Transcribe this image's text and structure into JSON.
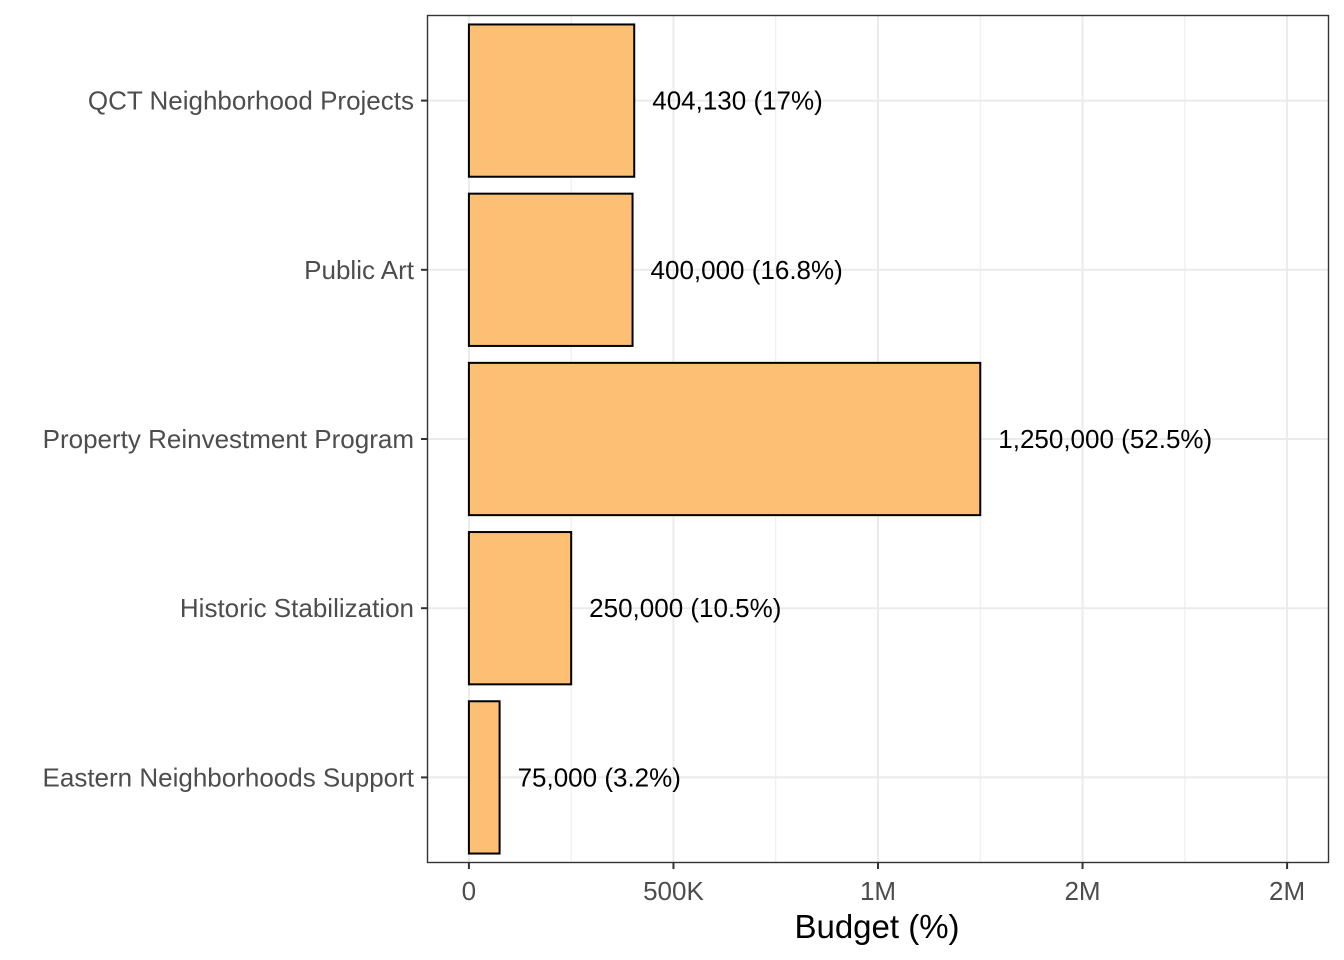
{
  "chart_data": {
    "type": "bar",
    "orientation": "horizontal",
    "title": "",
    "xlabel": "Budget (%)",
    "ylabel": "",
    "categories": [
      "QCT Neighborhood Projects",
      "Public Art",
      "Property Reinvestment Program",
      "Historic Stabilization",
      "Eastern Neighborhoods Support"
    ],
    "values": [
      404130,
      400000,
      1250000,
      250000,
      75000
    ],
    "data_labels": [
      "404,130 (17%)",
      "400,000 (16.8%)",
      "1,250,000 (52.5%)",
      "250,000 (10.5%)",
      "75,000 (3.2%)"
    ],
    "xlim": [
      -100000,
      2100000
    ],
    "x_ticks": [
      0,
      500000,
      1000000,
      1500000,
      2000000
    ],
    "x_tick_labels": [
      "0",
      "500K",
      "1M",
      "2M",
      "2M"
    ],
    "x_minor_ticks": [
      250000,
      750000,
      1250000,
      1750000
    ],
    "grid": true,
    "legend": "none",
    "colors": {
      "bar_fill": "#fdbf74",
      "bar_stroke": "#000000",
      "grid": "#ebebeb",
      "panel_border": "#333333",
      "tick_text": "#4d4d4d",
      "label_text": "#000000"
    }
  }
}
